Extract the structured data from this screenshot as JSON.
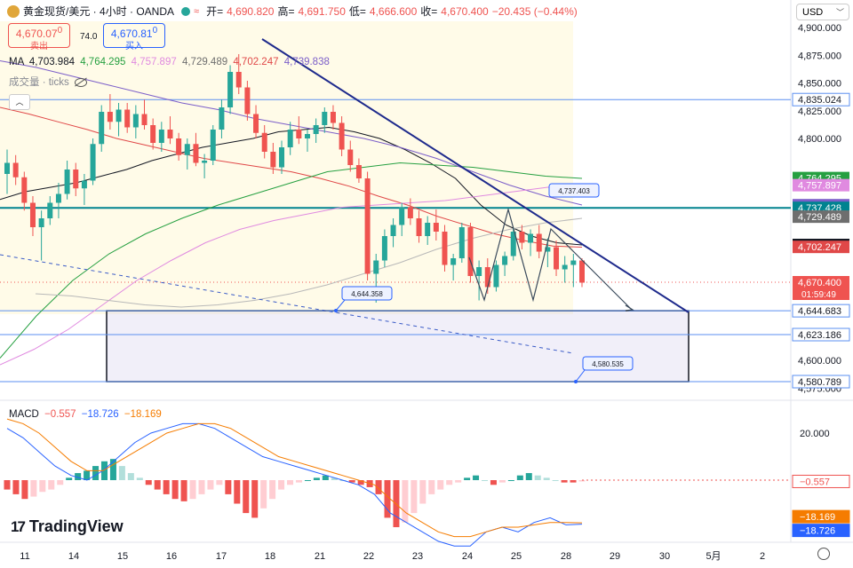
{
  "header": {
    "symbol": "黄金现货/美元 · 4小时 · OANDA",
    "open_label": "开=",
    "open": "4,690.820",
    "high_label": "高=",
    "high": "4,691.750",
    "low_label": "低=",
    "low": "4,666.600",
    "close_label": "收=",
    "close": "4,670.400",
    "change": "−20.435 (−0.44%)"
  },
  "trade": {
    "sell_price": "4,670.07",
    "sell_sup": "0",
    "sell_label": "卖出",
    "spread": "74.0",
    "buy_price": "4,670.81",
    "buy_sup": "0",
    "buy_label": "买入"
  },
  "ma_legend": {
    "label": "MA",
    "values": [
      "4,703.984",
      "4,764.295",
      "4,757.897",
      "4,729.489",
      "4,702.247",
      "4,739.838"
    ],
    "colors": [
      "#131722",
      "#26a041",
      "#e08ae0",
      "#6e6e6e",
      "#e04848",
      "#7b5ec9"
    ]
  },
  "volume_legend": "成交量 · ticks",
  "currency": "USD",
  "macd_legend": {
    "label": "MACD",
    "values": [
      "−0.557",
      "−18.726",
      "−18.169"
    ],
    "colors": [
      "#ef5350",
      "#2962ff",
      "#f57c00"
    ]
  },
  "brand": "TradingView",
  "colors": {
    "up": "#26a69a",
    "down": "#ef5350",
    "trendline": "#1e2a8c",
    "level": "#5b8ff0",
    "teal_level": "#00838f"
  },
  "chart_data": {
    "type": "candlestick",
    "y_axis_ticks": [
      "4,900.000",
      "4,875.000",
      "4,850.000",
      "4,825.000",
      "4,800.000",
      "4,600.000",
      "4,575.000"
    ],
    "x_axis_ticks": [
      "11",
      "14",
      "15",
      "16",
      "17",
      "18",
      "21",
      "22",
      "23",
      "24",
      "25",
      "28",
      "29",
      "30",
      "5月",
      "2"
    ],
    "price_labels": [
      {
        "text": "4,835.024",
        "value": 4835.024,
        "color": "#5b8ff0",
        "style": "outline"
      },
      {
        "text": "4,764.295",
        "value": 4764.295,
        "color": "#26a041",
        "style": "fill"
      },
      {
        "text": "4,757.897",
        "value": 4757.897,
        "color": "#e08ae0",
        "style": "fill"
      },
      {
        "text": "4,739.838",
        "value": 4739.838,
        "color": "#7b5ec9",
        "style": "fill"
      },
      {
        "text": "4,737.428",
        "value": 4737.428,
        "color": "#00838f",
        "style": "fill"
      },
      {
        "text": "4,729.489",
        "value": 4729.489,
        "color": "#6e6e6e",
        "style": "fill"
      },
      {
        "text": "4,703.984",
        "value": 4703.984,
        "color": "#131722",
        "style": "fill"
      },
      {
        "text": "4,702.247",
        "value": 4702.247,
        "color": "#e04848",
        "style": "fill"
      },
      {
        "text": "4,670.400",
        "value": 4670.4,
        "color": "#ef5350",
        "style": "fill"
      },
      {
        "text": "4,644.683",
        "value": 4644.683,
        "color": "#5b8ff0",
        "style": "outline"
      },
      {
        "text": "4,623.186",
        "value": 4623.186,
        "color": "#5b8ff0",
        "style": "outline"
      },
      {
        "text": "4,580.789",
        "value": 4580.789,
        "color": "#5b8ff0",
        "style": "outline"
      }
    ],
    "countdown": "01:59:49",
    "annotations": [
      "4,737.403",
      "4,644.358",
      "4,580.535"
    ],
    "horizontal_levels": [
      4835.024,
      4737.428,
      4644.683,
      4623.186,
      4580.789
    ],
    "candles": [
      [
        4768,
        4790,
        4750,
        4778
      ],
      [
        4778,
        4785,
        4758,
        4765
      ],
      [
        4765,
        4770,
        4735,
        4742
      ],
      [
        4742,
        4748,
        4712,
        4720
      ],
      [
        4720,
        4735,
        4690,
        4728
      ],
      [
        4728,
        4748,
        4722,
        4742
      ],
      [
        4742,
        4760,
        4728,
        4750
      ],
      [
        4750,
        4780,
        4745,
        4772
      ],
      [
        4772,
        4778,
        4748,
        4755
      ],
      [
        4755,
        4768,
        4740,
        4762
      ],
      [
        4762,
        4800,
        4758,
        4795
      ],
      [
        4795,
        4830,
        4788,
        4824
      ],
      [
        4824,
        4840,
        4808,
        4815
      ],
      [
        4815,
        4832,
        4802,
        4826
      ],
      [
        4826,
        4832,
        4805,
        4810
      ],
      [
        4810,
        4830,
        4800,
        4822
      ],
      [
        4822,
        4835,
        4808,
        4812
      ],
      [
        4812,
        4818,
        4790,
        4796
      ],
      [
        4796,
        4815,
        4788,
        4808
      ],
      [
        4808,
        4820,
        4795,
        4800
      ],
      [
        4800,
        4805,
        4780,
        4785
      ],
      [
        4785,
        4800,
        4772,
        4795
      ],
      [
        4795,
        4805,
        4775,
        4778
      ],
      [
        4778,
        4786,
        4764,
        4780
      ],
      [
        4780,
        4812,
        4776,
        4808
      ],
      [
        4808,
        4835,
        4800,
        4828
      ],
      [
        4828,
        4866,
        4822,
        4860
      ],
      [
        4860,
        4876,
        4840,
        4846
      ],
      [
        4846,
        4852,
        4816,
        4822
      ],
      [
        4822,
        4830,
        4800,
        4805
      ],
      [
        4805,
        4812,
        4782,
        4788
      ],
      [
        4788,
        4796,
        4768,
        4774
      ],
      [
        4774,
        4798,
        4768,
        4792
      ],
      [
        4792,
        4815,
        4785,
        4808
      ],
      [
        4808,
        4820,
        4795,
        4800
      ],
      [
        4800,
        4808,
        4788,
        4804
      ],
      [
        4804,
        4818,
        4796,
        4812
      ],
      [
        4812,
        4828,
        4805,
        4824
      ],
      [
        4824,
        4830,
        4808,
        4814
      ],
      [
        4814,
        4820,
        4784,
        4790
      ],
      [
        4790,
        4798,
        4770,
        4776
      ],
      [
        4776,
        4782,
        4760,
        4764
      ],
      [
        4764,
        4770,
        4672,
        4678
      ],
      [
        4678,
        4696,
        4652,
        4690
      ],
      [
        4690,
        4718,
        4684,
        4712
      ],
      [
        4712,
        4728,
        4702,
        4722
      ],
      [
        4722,
        4742,
        4712,
        4738
      ],
      [
        4738,
        4746,
        4722,
        4728
      ],
      [
        4728,
        4735,
        4706,
        4712
      ],
      [
        4712,
        4730,
        4704,
        4724
      ],
      [
        4724,
        4736,
        4708,
        4716
      ],
      [
        4716,
        4722,
        4680,
        4686
      ],
      [
        4686,
        4696,
        4672,
        4692
      ],
      [
        4692,
        4724,
        4688,
        4720
      ],
      [
        4720,
        4724,
        4670,
        4676
      ],
      [
        4676,
        4690,
        4654,
        4684
      ],
      [
        4684,
        4692,
        4660,
        4666
      ],
      [
        4666,
        4690,
        4662,
        4686
      ],
      [
        4686,
        4698,
        4676,
        4694
      ],
      [
        4694,
        4720,
        4690,
        4716
      ],
      [
        4716,
        4722,
        4700,
        4706
      ],
      [
        4706,
        4718,
        4694,
        4714
      ],
      [
        4714,
        4722,
        4692,
        4698
      ],
      [
        4698,
        4710,
        4684,
        4702
      ],
      [
        4702,
        4708,
        4676,
        4682
      ],
      [
        4682,
        4694,
        4670,
        4686
      ],
      [
        4686,
        4696,
        4666,
        4690
      ],
      [
        4690,
        4692,
        4666,
        4670
      ]
    ],
    "ma_series": {
      "black": [
        4745,
        4752,
        4756,
        4760,
        4766,
        4772,
        4780,
        4786,
        4792,
        4796,
        4800,
        4806,
        4808,
        4810,
        4806,
        4800,
        4790,
        4778,
        4764,
        4740,
        4722,
        4712,
        4706,
        4704
      ],
      "red": [
        4828,
        4822,
        4815,
        4808,
        4800,
        4794,
        4788,
        4782,
        4778,
        4774,
        4770,
        4764,
        4757,
        4748,
        4740,
        4730,
        4722,
        4714,
        4708,
        4703,
        4702
      ],
      "green": [
        4602,
        4640,
        4672,
        4696,
        4714,
        4728,
        4740,
        4750,
        4760,
        4770,
        4774,
        4778,
        4776,
        4774,
        4770,
        4766,
        4764
      ],
      "purple": [
        4870,
        4864,
        4856,
        4848,
        4840,
        4832,
        4826,
        4818,
        4812,
        4806,
        4800,
        4792,
        4782,
        4770,
        4758,
        4748,
        4740
      ],
      "pink": [
        4596,
        4610,
        4628,
        4650,
        4672,
        4690,
        4706,
        4718,
        4726,
        4732,
        4738,
        4740,
        4742,
        4744,
        4748,
        4752,
        4756,
        4758
      ],
      "gray": [
        4660,
        4658,
        4654,
        4650,
        4648,
        4650,
        4654,
        4660,
        4668,
        4678,
        4688,
        4700,
        4710,
        4718,
        4724,
        4728
      ]
    },
    "macd": {
      "hist": [
        -4,
        -6,
        -8,
        -7,
        -5,
        -4,
        -2,
        1,
        3,
        4,
        6,
        8,
        9,
        6,
        3,
        1,
        -2,
        -4,
        -6,
        -8,
        -9,
        -8,
        -6,
        -4,
        -2,
        -6,
        -10,
        -14,
        -16,
        -12,
        -8,
        -4,
        -2,
        -1,
        0,
        1,
        2,
        1,
        0,
        -1,
        -2,
        -3,
        -6,
        -16,
        -20,
        -18,
        -14,
        -10,
        -6,
        -4,
        -2,
        -1,
        1,
        2,
        0,
        -2,
        -1,
        0,
        2,
        3,
        2,
        1,
        0,
        -1,
        -1,
        -0.557
      ],
      "macd_line": [
        22,
        18,
        12,
        6,
        2,
        0,
        4,
        10,
        16,
        20,
        22,
        24,
        24,
        22,
        18,
        14,
        10,
        8,
        6,
        4,
        2,
        0,
        -2,
        -6,
        -14,
        -18,
        -22,
        -26,
        -28,
        -28,
        -22,
        -20,
        -22,
        -18,
        -16,
        -19,
        -18.726
      ],
      "signal_line": [
        26,
        24,
        20,
        14,
        8,
        4,
        4,
        8,
        12,
        16,
        20,
        22,
        24,
        24,
        22,
        18,
        14,
        10,
        8,
        6,
        4,
        2,
        0,
        -2,
        -8,
        -14,
        -18,
        -22,
        -24,
        -24,
        -22,
        -20,
        -20,
        -19,
        -18,
        -18,
        -18.169
      ],
      "hist_label": "−0.557",
      "macd_label": "−18.726",
      "signal_label": "−18.169",
      "tick": "20.000"
    }
  }
}
